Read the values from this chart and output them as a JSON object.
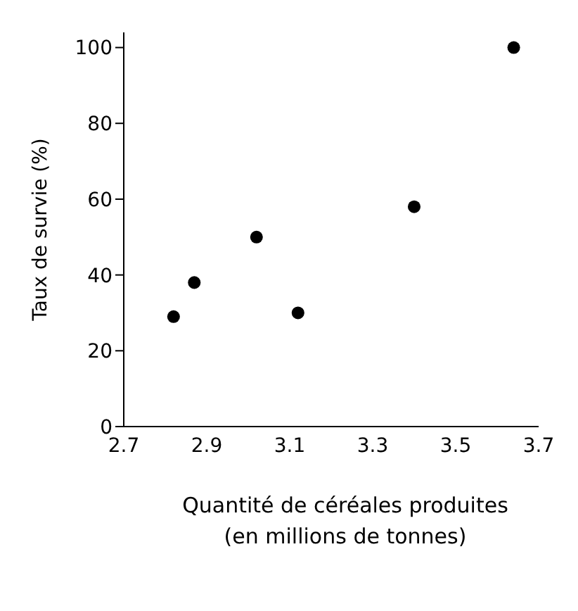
{
  "chart_data": {
    "type": "scatter",
    "xlabel": "Quantité de céréales produites\n(en millions de tonnes)",
    "ylabel": "Taux de survie (%)",
    "x": [
      2.82,
      2.87,
      3.02,
      3.12,
      3.4,
      3.64
    ],
    "series": [
      {
        "color": "#000000",
        "values": [
          29,
          38,
          50,
          30,
          58,
          100
        ]
      }
    ],
    "xlim": [
      2.7,
      3.7
    ],
    "xticks": [
      2.7,
      2.9,
      3.1,
      3.3,
      3.5,
      3.7
    ],
    "ylim": [
      0,
      104
    ],
    "yticks": [
      0,
      20,
      40,
      60,
      80,
      100
    ],
    "grid": false,
    "legend": false,
    "marker": "circle"
  }
}
